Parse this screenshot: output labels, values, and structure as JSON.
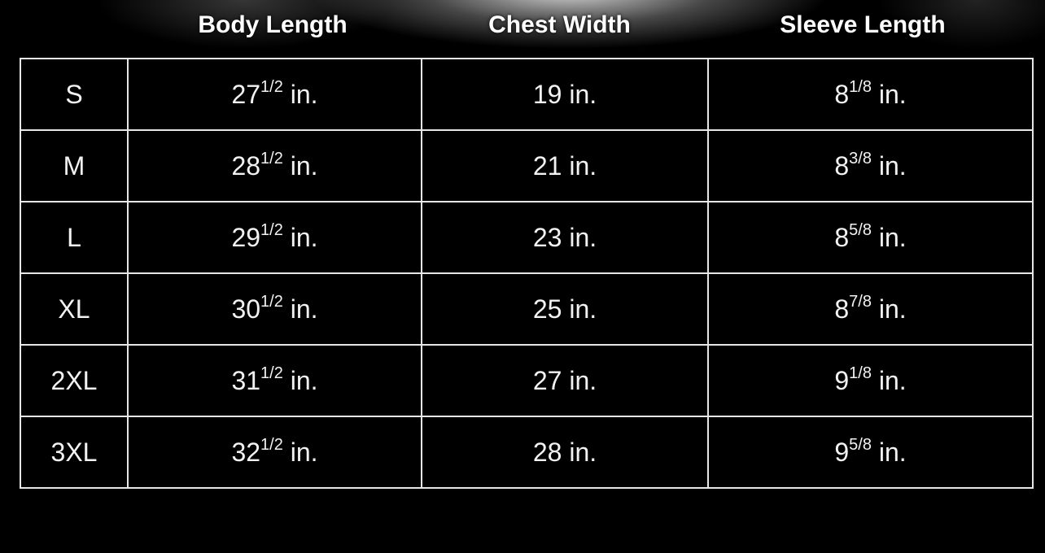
{
  "headers": {
    "size": "",
    "body_length": "Body Length",
    "chest_width": "Chest Width",
    "sleeve_length": "Sleeve Length"
  },
  "rows": [
    {
      "size": "S",
      "body_whole": "27",
      "body_frac": "1/2",
      "chest": "19 in.",
      "sleeve_whole": "8",
      "sleeve_frac": "1/8"
    },
    {
      "size": "M",
      "body_whole": "28",
      "body_frac": "1/2",
      "chest": "21 in.",
      "sleeve_whole": "8",
      "sleeve_frac": "3/8"
    },
    {
      "size": "L",
      "body_whole": "29",
      "body_frac": "1/2",
      "chest": "23 in.",
      "sleeve_whole": "8",
      "sleeve_frac": "5/8"
    },
    {
      "size": "XL",
      "body_whole": "30",
      "body_frac": "1/2",
      "chest": "25 in.",
      "sleeve_whole": "8",
      "sleeve_frac": "7/8"
    },
    {
      "size": "2XL",
      "body_whole": "31",
      "body_frac": "1/2",
      "chest": "27 in.",
      "sleeve_whole": "9",
      "sleeve_frac": "1/8"
    },
    {
      "size": "3XL",
      "body_whole": "32",
      "body_frac": "1/2",
      "chest": "28 in.",
      "sleeve_whole": "9",
      "sleeve_frac": "5/8"
    }
  ],
  "unit": " in.",
  "colors": {
    "background": "#000000",
    "text": "#ffffff",
    "border": "#e6e6e6"
  }
}
